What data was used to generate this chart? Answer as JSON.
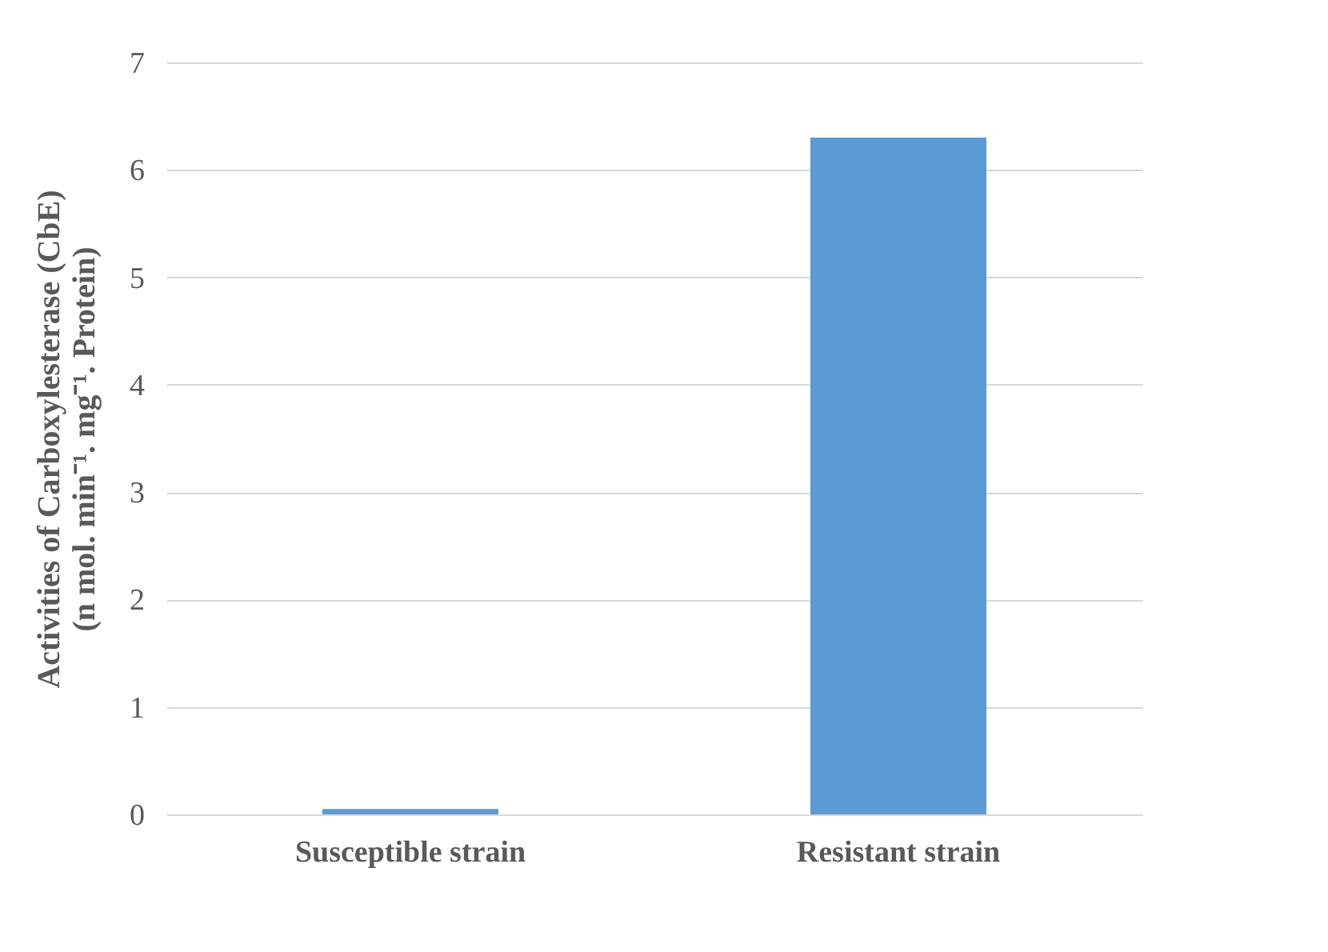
{
  "chart_data": {
    "type": "bar",
    "ylabel": "Activities of Carboxylesterase (CbE)\n(n mol. min⁻¹. mg⁻¹. Protein)",
    "categories": [
      "Susceptible strain",
      "Resistant strain"
    ],
    "values": [
      0.05,
      6.3
    ],
    "color": "#5b9bd5",
    "ylim": [
      0,
      7
    ],
    "yticks": [
      0,
      1,
      2,
      3,
      4,
      5,
      6,
      7
    ],
    "grid": "y"
  }
}
